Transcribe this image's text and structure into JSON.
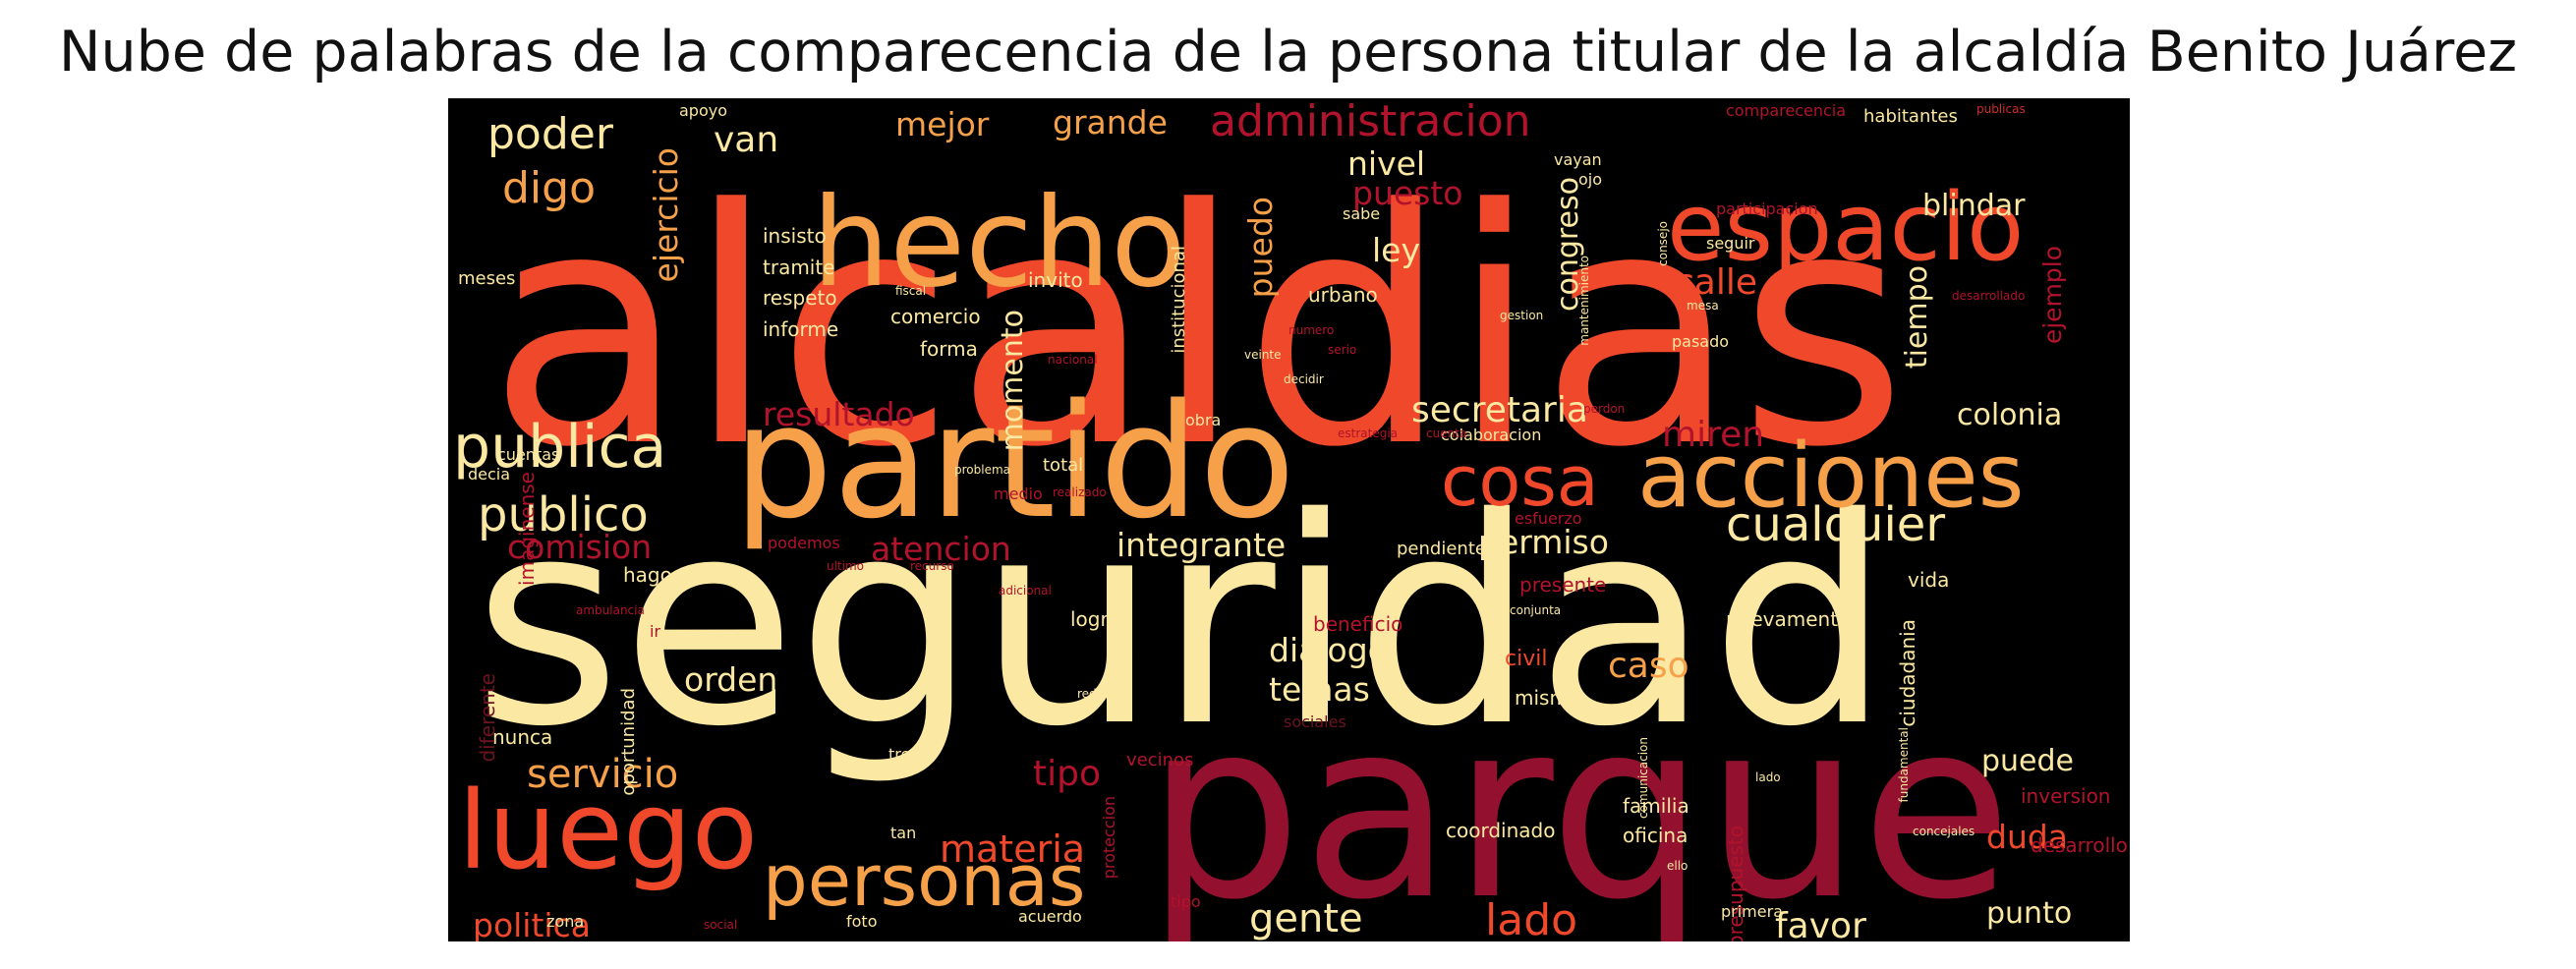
{
  "title": "Nube de palabras de la comparecencia de la persona titular de la alcaldía Benito Juárez",
  "palette": {
    "red": "#f0482a",
    "orange": "#f6a149",
    "cream": "#fbe8a2",
    "crimson": "#93112e",
    "darkred": "#b1132c",
    "dim": "#6e1320",
    "bright": "#d02a2c"
  },
  "words": [
    "alcaldias",
    "seguridad",
    "parque",
    "partido",
    "hecho",
    "espacio",
    "acciones",
    "luego",
    "cosa",
    "personas",
    "cualquier",
    "publica",
    "publico",
    "poder",
    "digo",
    "van",
    "mejor",
    "grande",
    "administracion",
    "nivel",
    "puesto",
    "blindar",
    "ley",
    "calle",
    "secretaria",
    "colonia",
    "miren",
    "resultado",
    "comision",
    "atencion",
    "integrante",
    "permiso",
    "servicio",
    "orden",
    "tipo",
    "materia",
    "politica",
    "dialogo",
    "temas",
    "caso",
    "puede",
    "duda",
    "gente",
    "lado",
    "favor",
    "punto",
    "ejercicio",
    "momento",
    "puedo",
    "congreso",
    "tiempo",
    "ejemplo",
    "logro",
    "nuevamente",
    "familia",
    "oficina",
    "coordinado",
    "presupuesto",
    "desarrollo",
    "inversion",
    "ciudadania",
    "mismo",
    "civil",
    "beneficio",
    "presente",
    "vida",
    "pendiente",
    "colaboracion",
    "hago",
    "podemos",
    "oportunidad",
    "nunca",
    "diferente",
    "imaginense",
    "insisto",
    "tramite",
    "respeto",
    "informe",
    "meses",
    "invito",
    "comercio",
    "forma",
    "institucional",
    "urbano",
    "sabe",
    "pasado",
    "ojo",
    "vayan",
    "apoyo",
    "habitantes",
    "comparecencia",
    "participacion",
    "seguir",
    "total",
    "medio",
    "decia",
    "cuentas",
    "obra",
    "tres",
    "tan",
    "foto",
    "acuerdo",
    "zona",
    "social",
    "primera",
    "redes",
    "necesidades",
    "concejales",
    "problema",
    "realizado",
    "ultimo",
    "fiscal",
    "veinte",
    "estrategia",
    "cuenta",
    "gestion",
    "mantenimiento",
    "perdon",
    "numero",
    "recurso",
    "ambulancia",
    "adicional",
    "esfuerzo",
    "sociales",
    "lado",
    "ello",
    "conjunta",
    "comunicacion",
    "tipo",
    "proteccion",
    "fundamental",
    "nacional",
    "ir",
    "mesa",
    "vecinos",
    "decidir",
    "serio",
    "consejo",
    "desarrollado",
    "publicas"
  ]
}
